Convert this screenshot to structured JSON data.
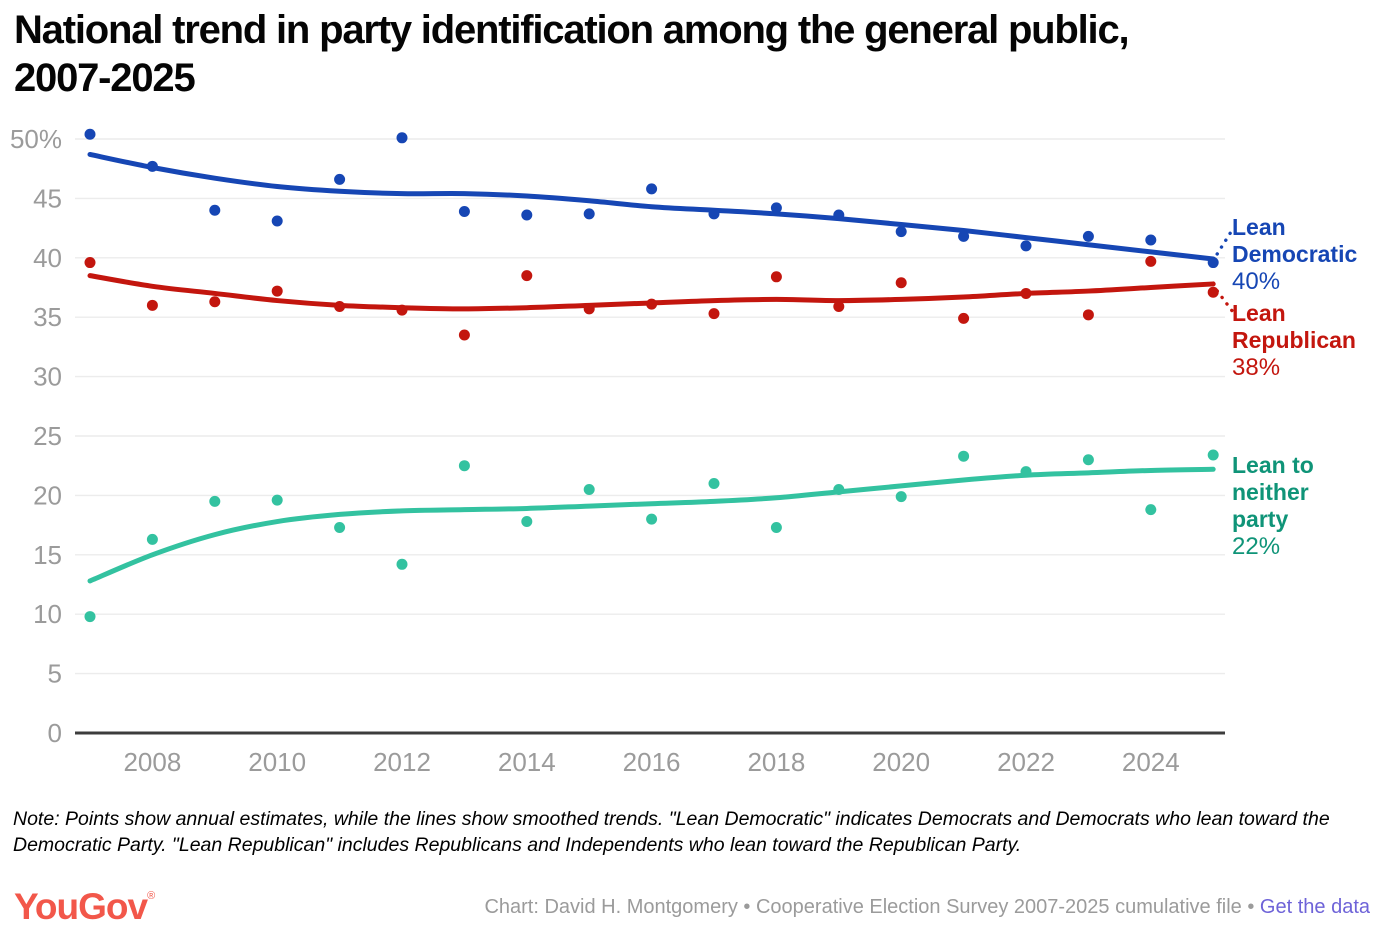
{
  "title": {
    "lines": [
      "National trend in party identification among the general public,",
      "2007-2025"
    ]
  },
  "chart_data": {
    "type": "scatter",
    "subtype": "annual points with smoothed trend lines",
    "x": [
      2007,
      2008,
      2009,
      2010,
      2011,
      2012,
      2013,
      2014,
      2015,
      2016,
      2017,
      2018,
      2019,
      2020,
      2021,
      2022,
      2023,
      2024,
      2025
    ],
    "x_ticks": [
      {
        "v": 2008,
        "label": "2008"
      },
      {
        "v": 2010,
        "label": "2010"
      },
      {
        "v": 2012,
        "label": "2012"
      },
      {
        "v": 2014,
        "label": "2014"
      },
      {
        "v": 2016,
        "label": "2016"
      },
      {
        "v": 2018,
        "label": "2018"
      },
      {
        "v": 2020,
        "label": "2020"
      },
      {
        "v": 2022,
        "label": "2022"
      },
      {
        "v": 2024,
        "label": "2024"
      }
    ],
    "y_ticks": [
      {
        "v": 0,
        "label": "0"
      },
      {
        "v": 5,
        "label": "5"
      },
      {
        "v": 10,
        "label": "10"
      },
      {
        "v": 15,
        "label": "15"
      },
      {
        "v": 20,
        "label": "20"
      },
      {
        "v": 25,
        "label": "25"
      },
      {
        "v": 30,
        "label": "30"
      },
      {
        "v": 35,
        "label": "35"
      },
      {
        "v": 40,
        "label": "40"
      },
      {
        "v": 45,
        "label": "45"
      },
      {
        "v": 50,
        "label": "50%"
      }
    ],
    "ylim": [
      0,
      52
    ],
    "xlim": [
      2006.75,
      2025.2
    ],
    "grid": "horizontal-only",
    "legend_position": "right-of-line-ends",
    "series": [
      {
        "name": "Lean Democratic",
        "end_label": "40%",
        "color": "#1646b4",
        "label_color": "#1646b4",
        "leader": "up",
        "points": [
          50.4,
          47.7,
          44.0,
          43.1,
          46.6,
          50.1,
          43.9,
          43.6,
          43.7,
          45.8,
          43.7,
          44.2,
          43.6,
          42.2,
          41.8,
          41.0,
          41.8,
          41.5,
          39.6
        ],
        "trend": [
          48.7,
          47.6,
          46.7,
          46.0,
          45.6,
          45.4,
          45.4,
          45.2,
          44.8,
          44.3,
          44.0,
          43.7,
          43.3,
          42.8,
          42.3,
          41.7,
          41.1,
          40.5,
          39.9
        ]
      },
      {
        "name": "Lean Republican",
        "end_label": "38%",
        "color": "#c3160e",
        "label_color": "#c3160e",
        "leader": "down",
        "points": [
          39.6,
          36.0,
          36.3,
          37.2,
          35.9,
          35.6,
          33.5,
          38.5,
          35.7,
          36.1,
          35.3,
          38.4,
          35.9,
          37.9,
          34.9,
          37.0,
          35.2,
          39.7,
          37.1
        ],
        "trend": [
          38.5,
          37.6,
          37.0,
          36.4,
          36.0,
          35.8,
          35.7,
          35.8,
          36.0,
          36.2,
          36.4,
          36.5,
          36.4,
          36.5,
          36.7,
          37.0,
          37.2,
          37.5,
          37.8
        ]
      },
      {
        "name": "Lean to neither party",
        "end_label": "22%",
        "color": "#33c2a0",
        "label_color": "#0f9478",
        "leader": "none",
        "points": [
          9.8,
          16.3,
          19.5,
          19.6,
          17.3,
          14.2,
          22.5,
          17.8,
          20.5,
          18.0,
          21.0,
          17.3,
          20.5,
          19.9,
          23.3,
          22.0,
          23.0,
          18.8,
          23.4
        ],
        "trend": [
          12.8,
          15.0,
          16.7,
          17.8,
          18.4,
          18.7,
          18.8,
          18.9,
          19.1,
          19.3,
          19.5,
          19.8,
          20.3,
          20.8,
          21.3,
          21.7,
          21.9,
          22.1,
          22.2
        ]
      }
    ],
    "colors": {
      "grid": "#ececec",
      "axis": "#3c3c3c",
      "tick_text": "#9b9b9b"
    }
  },
  "note": "Note: Points show annual estimates, while the lines show smoothed trends. \"Lean Democratic\" indicates Democrats and Democrats who lean toward the Democratic Party. \"Lean Republican\" includes Republicans and Independents who lean toward the Republican Party.",
  "footer": {
    "logo_text": "YouGov",
    "logo_reg": "®",
    "credit": "Chart: David H. Montgomery • Cooperative Election Survey 2007-2025 cumulative file • ",
    "link_label": "Get the data"
  }
}
